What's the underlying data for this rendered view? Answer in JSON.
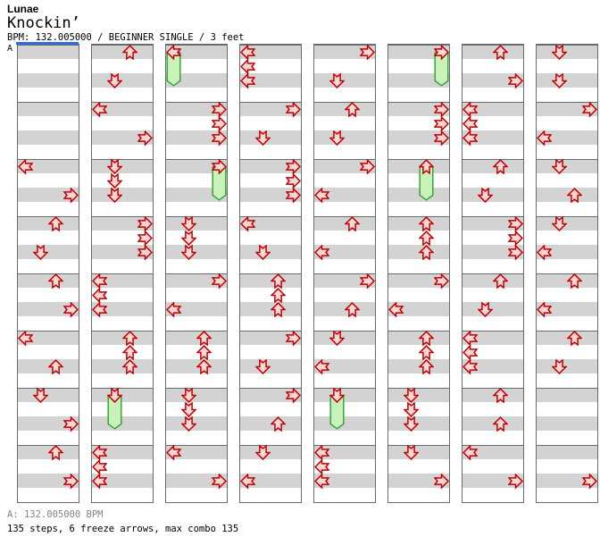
{
  "header": {
    "artist": "Lunae",
    "title": "Knockin’",
    "meta": "BPM: 132.005000 / BEGINNER SINGLE / 3 feet"
  },
  "footer": {
    "bpm_marker": "A: 132.005000 BPM",
    "stats": "135 steps, 6 freeze arrows, max combo 135"
  },
  "chart": {
    "marker_label": "A",
    "columns": 8,
    "rows_per_column": 32,
    "rows_per_measure": 4,
    "lanes": [
      "left",
      "down",
      "up",
      "right"
    ],
    "colors": {
      "stripe_gray": "#d3d3d3",
      "stripe_white": "#ffffff",
      "grid_border": "#6b6b6b",
      "arrow_outline": "#c10000",
      "arrow_fill": "#fad6d6",
      "freeze_fill": "#c9f2ba",
      "freeze_outline": "#2da02d",
      "marker_blue": "#2e6ddb",
      "bpm_text_gray": "#848484"
    },
    "taps": [
      [
        0,
        8,
        "L"
      ],
      [
        0,
        10,
        "R"
      ],
      [
        0,
        12,
        "U"
      ],
      [
        0,
        14,
        "D"
      ],
      [
        0,
        16,
        "U"
      ],
      [
        0,
        18,
        "R"
      ],
      [
        0,
        20,
        "L"
      ],
      [
        0,
        22,
        "U"
      ],
      [
        0,
        24,
        "D"
      ],
      [
        0,
        26,
        "R"
      ],
      [
        0,
        28,
        "U"
      ],
      [
        0,
        30,
        "R"
      ],
      [
        1,
        0,
        "U"
      ],
      [
        1,
        2,
        "D"
      ],
      [
        1,
        4,
        "L"
      ],
      [
        1,
        6,
        "R"
      ],
      [
        1,
        8,
        "D"
      ],
      [
        1,
        9,
        "D"
      ],
      [
        1,
        10,
        "D"
      ],
      [
        1,
        12,
        "R"
      ],
      [
        1,
        13,
        "R"
      ],
      [
        1,
        14,
        "R"
      ],
      [
        1,
        16,
        "L"
      ],
      [
        1,
        17,
        "L"
      ],
      [
        1,
        18,
        "L"
      ],
      [
        1,
        20,
        "U"
      ],
      [
        1,
        21,
        "U"
      ],
      [
        1,
        22,
        "U"
      ],
      [
        1,
        28,
        "L"
      ],
      [
        1,
        29,
        "L"
      ],
      [
        1,
        30,
        "L"
      ],
      [
        2,
        4,
        "R"
      ],
      [
        2,
        5,
        "R"
      ],
      [
        2,
        6,
        "R"
      ],
      [
        2,
        12,
        "D"
      ],
      [
        2,
        13,
        "D"
      ],
      [
        2,
        14,
        "D"
      ],
      [
        2,
        16,
        "R"
      ],
      [
        2,
        18,
        "L"
      ],
      [
        2,
        20,
        "U"
      ],
      [
        2,
        21,
        "U"
      ],
      [
        2,
        22,
        "U"
      ],
      [
        2,
        24,
        "D"
      ],
      [
        2,
        25,
        "D"
      ],
      [
        2,
        26,
        "D"
      ],
      [
        2,
        28,
        "L"
      ],
      [
        2,
        30,
        "R"
      ],
      [
        3,
        0,
        "L"
      ],
      [
        3,
        1,
        "L"
      ],
      [
        3,
        2,
        "L"
      ],
      [
        3,
        4,
        "R"
      ],
      [
        3,
        6,
        "D"
      ],
      [
        3,
        8,
        "R"
      ],
      [
        3,
        9,
        "R"
      ],
      [
        3,
        10,
        "R"
      ],
      [
        3,
        12,
        "L"
      ],
      [
        3,
        14,
        "D"
      ],
      [
        3,
        16,
        "U"
      ],
      [
        3,
        17,
        "U"
      ],
      [
        3,
        18,
        "U"
      ],
      [
        3,
        20,
        "R"
      ],
      [
        3,
        22,
        "D"
      ],
      [
        3,
        24,
        "R"
      ],
      [
        3,
        26,
        "U"
      ],
      [
        3,
        28,
        "D"
      ],
      [
        3,
        30,
        "L"
      ],
      [
        4,
        0,
        "R"
      ],
      [
        4,
        2,
        "D"
      ],
      [
        4,
        4,
        "U"
      ],
      [
        4,
        6,
        "D"
      ],
      [
        4,
        8,
        "R"
      ],
      [
        4,
        10,
        "L"
      ],
      [
        4,
        12,
        "U"
      ],
      [
        4,
        14,
        "L"
      ],
      [
        4,
        16,
        "R"
      ],
      [
        4,
        18,
        "U"
      ],
      [
        4,
        20,
        "D"
      ],
      [
        4,
        22,
        "L"
      ],
      [
        4,
        28,
        "L"
      ],
      [
        4,
        29,
        "L"
      ],
      [
        4,
        30,
        "L"
      ],
      [
        5,
        4,
        "R"
      ],
      [
        5,
        5,
        "R"
      ],
      [
        5,
        6,
        "R"
      ],
      [
        5,
        12,
        "U"
      ],
      [
        5,
        13,
        "U"
      ],
      [
        5,
        14,
        "U"
      ],
      [
        5,
        16,
        "R"
      ],
      [
        5,
        18,
        "L"
      ],
      [
        5,
        20,
        "U"
      ],
      [
        5,
        21,
        "U"
      ],
      [
        5,
        22,
        "U"
      ],
      [
        5,
        24,
        "D"
      ],
      [
        5,
        25,
        "D"
      ],
      [
        5,
        26,
        "D"
      ],
      [
        5,
        28,
        "D"
      ],
      [
        5,
        30,
        "R"
      ],
      [
        6,
        0,
        "U"
      ],
      [
        6,
        2,
        "R"
      ],
      [
        6,
        4,
        "L"
      ],
      [
        6,
        5,
        "L"
      ],
      [
        6,
        6,
        "L"
      ],
      [
        6,
        8,
        "U"
      ],
      [
        6,
        10,
        "D"
      ],
      [
        6,
        12,
        "R"
      ],
      [
        6,
        13,
        "R"
      ],
      [
        6,
        14,
        "R"
      ],
      [
        6,
        16,
        "U"
      ],
      [
        6,
        18,
        "D"
      ],
      [
        6,
        20,
        "L"
      ],
      [
        6,
        21,
        "L"
      ],
      [
        6,
        22,
        "L"
      ],
      [
        6,
        24,
        "U"
      ],
      [
        6,
        26,
        "U"
      ],
      [
        6,
        28,
        "L"
      ],
      [
        6,
        30,
        "R"
      ],
      [
        7,
        0,
        "D"
      ],
      [
        7,
        2,
        "D"
      ],
      [
        7,
        4,
        "R"
      ],
      [
        7,
        6,
        "L"
      ],
      [
        7,
        8,
        "D"
      ],
      [
        7,
        10,
        "U"
      ],
      [
        7,
        12,
        "D"
      ],
      [
        7,
        14,
        "L"
      ],
      [
        7,
        16,
        "U"
      ],
      [
        7,
        18,
        "L"
      ],
      [
        7,
        20,
        "U"
      ],
      [
        7,
        22,
        "D"
      ],
      [
        7,
        30,
        "R"
      ]
    ],
    "freezes": [
      [
        1,
        24,
        "D",
        3
      ],
      [
        2,
        0,
        "L",
        3
      ],
      [
        2,
        8,
        "R",
        3
      ],
      [
        4,
        24,
        "D",
        3
      ],
      [
        5,
        0,
        "R",
        3
      ],
      [
        5,
        8,
        "U",
        3
      ]
    ]
  }
}
